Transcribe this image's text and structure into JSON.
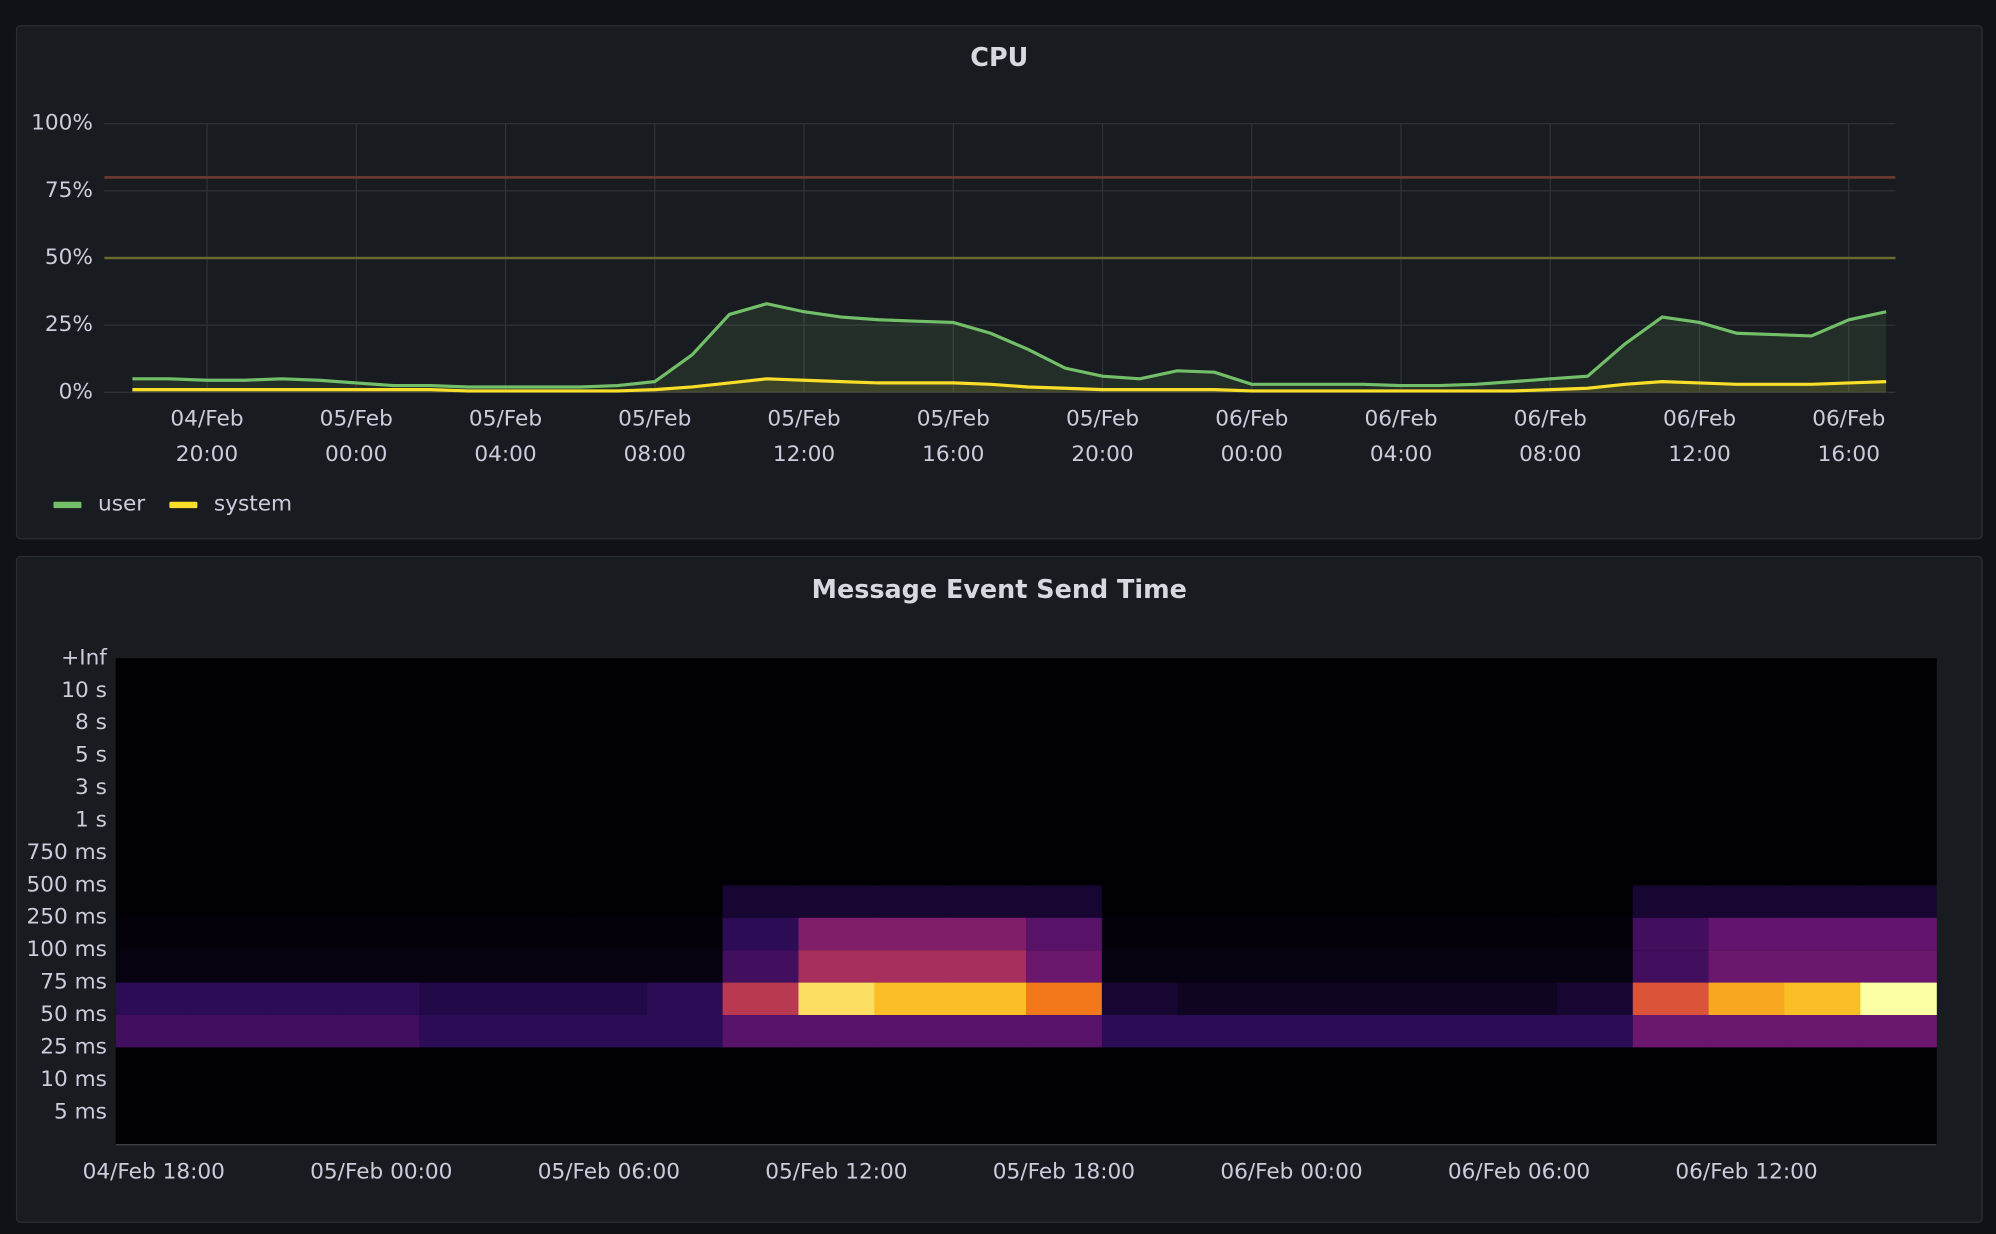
{
  "chart_data": [
    {
      "type": "line",
      "title": "CPU",
      "x": [
        "04/Feb 18:00",
        "04/Feb 19:00",
        "04/Feb 20:00",
        "04/Feb 21:00",
        "04/Feb 22:00",
        "04/Feb 23:00",
        "05/Feb 00:00",
        "05/Feb 01:00",
        "05/Feb 02:00",
        "05/Feb 03:00",
        "05/Feb 04:00",
        "05/Feb 05:00",
        "05/Feb 06:00",
        "05/Feb 07:00",
        "05/Feb 08:00",
        "05/Feb 09:00",
        "05/Feb 10:00",
        "05/Feb 11:00",
        "05/Feb 12:00",
        "05/Feb 13:00",
        "05/Feb 14:00",
        "05/Feb 15:00",
        "05/Feb 16:00",
        "05/Feb 17:00",
        "05/Feb 18:00",
        "05/Feb 19:00",
        "05/Feb 20:00",
        "05/Feb 21:00",
        "05/Feb 22:00",
        "05/Feb 23:00",
        "06/Feb 00:00",
        "06/Feb 01:00",
        "06/Feb 02:00",
        "06/Feb 03:00",
        "06/Feb 04:00",
        "06/Feb 05:00",
        "06/Feb 06:00",
        "06/Feb 07:00",
        "06/Feb 08:00",
        "06/Feb 09:00",
        "06/Feb 10:00",
        "06/Feb 11:00",
        "06/Feb 12:00",
        "06/Feb 13:00",
        "06/Feb 14:00",
        "06/Feb 15:00",
        "06/Feb 16:00",
        "06/Feb 17:00"
      ],
      "series": [
        {
          "name": "user",
          "color": "#73bf69",
          "values": [
            5,
            5,
            4.5,
            4.5,
            5,
            4.5,
            3.5,
            2.5,
            2.5,
            2,
            2,
            2,
            2,
            2.5,
            4,
            14,
            29,
            33,
            30,
            28,
            27,
            26.5,
            26,
            22,
            16,
            9,
            6,
            5,
            8,
            7.5,
            3,
            3,
            3,
            3,
            2.5,
            2.5,
            3,
            4,
            5,
            6,
            18,
            28,
            26,
            22,
            21.5,
            21,
            27,
            30
          ]
        },
        {
          "name": "system",
          "color": "#fade2a",
          "values": [
            1,
            1,
            1,
            1,
            1,
            1,
            1,
            1,
            1,
            0.5,
            0.5,
            0.5,
            0.5,
            0.5,
            1,
            2,
            3.5,
            5,
            4.5,
            4,
            3.5,
            3.5,
            3.5,
            3,
            2,
            1.5,
            1,
            1,
            1,
            1,
            0.5,
            0.5,
            0.5,
            0.5,
            0.5,
            0.5,
            0.5,
            0.5,
            1,
            1.5,
            3,
            4,
            3.5,
            3,
            3,
            3,
            3.5,
            4
          ]
        }
      ],
      "xlim": [
        "04/Feb 17:15",
        "06/Feb 17:15"
      ],
      "xticks": [
        "04/Feb 20:00",
        "05/Feb 00:00",
        "05/Feb 04:00",
        "05/Feb 08:00",
        "05/Feb 12:00",
        "05/Feb 16:00",
        "05/Feb 20:00",
        "06/Feb 00:00",
        "06/Feb 04:00",
        "06/Feb 08:00",
        "06/Feb 12:00",
        "06/Feb 16:00"
      ],
      "ylim": [
        0,
        100
      ],
      "yticks": [
        {
          "value": 0,
          "label": "0%"
        },
        {
          "value": 25,
          "label": "25%"
        },
        {
          "value": 50,
          "label": "50%"
        },
        {
          "value": 75,
          "label": "75%"
        },
        {
          "value": 100,
          "label": "100%"
        }
      ],
      "thresholds": [
        {
          "value": 80,
          "color": "#6b3a32"
        },
        {
          "value": 50,
          "color": "#6b6a2e"
        }
      ],
      "grid": true,
      "legend": "bottom-left"
    },
    {
      "type": "heatmap",
      "title": "Message Event Send Time",
      "color_scheme": "inferno",
      "x": [
        "04/Feb 17:00",
        "04/Feb 19:00",
        "04/Feb 21:00",
        "04/Feb 23:00",
        "05/Feb 01:00",
        "05/Feb 03:00",
        "05/Feb 05:00",
        "05/Feb 07:00",
        "05/Feb 09:00",
        "05/Feb 11:00",
        "05/Feb 13:00",
        "05/Feb 15:00",
        "05/Feb 17:00",
        "05/Feb 19:00",
        "05/Feb 21:00",
        "05/Feb 23:00",
        "06/Feb 01:00",
        "06/Feb 03:00",
        "06/Feb 05:00",
        "06/Feb 07:00",
        "06/Feb 09:00",
        "06/Feb 11:00",
        "06/Feb 13:00",
        "06/Feb 15:00"
      ],
      "xlim": [
        "04/Feb 17:00",
        "06/Feb 17:00"
      ],
      "xticks": [
        "04/Feb 18:00",
        "05/Feb 00:00",
        "05/Feb 06:00",
        "05/Feb 12:00",
        "05/Feb 18:00",
        "06/Feb 00:00",
        "06/Feb 06:00",
        "06/Feb 12:00"
      ],
      "y_categories": [
        "+Inf",
        "10 s",
        "8 s",
        "5 s",
        "3 s",
        "1 s",
        "750 ms",
        "500 ms",
        "250 ms",
        "100 ms",
        "75 ms",
        "50 ms",
        "25 ms",
        "10 ms",
        "5 ms"
      ],
      "values": [
        [
          0,
          0,
          0,
          0,
          0,
          0,
          0,
          0,
          0,
          0,
          0,
          0,
          0,
          0,
          0,
          0,
          0,
          0,
          0,
          0,
          0,
          0,
          0,
          0
        ],
        [
          0,
          0,
          0,
          0,
          0,
          0,
          0,
          0,
          0,
          0,
          0,
          0,
          0,
          0,
          0,
          0,
          0,
          0,
          0,
          0,
          0,
          0,
          0,
          0
        ],
        [
          0,
          0,
          0,
          0,
          0,
          0,
          0,
          0,
          0,
          0,
          0,
          0,
          0,
          0,
          0,
          0,
          0,
          0,
          0,
          0,
          0,
          0,
          0,
          0
        ],
        [
          0,
          0,
          0,
          0,
          0,
          0,
          0,
          0,
          0,
          0,
          0,
          0,
          0,
          0,
          0,
          0,
          0,
          0,
          0,
          0,
          0,
          0,
          0,
          0
        ],
        [
          0,
          0,
          0,
          0,
          0,
          0,
          0,
          0,
          0,
          0,
          0,
          0,
          0,
          0,
          0,
          0,
          0,
          0,
          0,
          0,
          0,
          0,
          0,
          0
        ],
        [
          0,
          0,
          0,
          0,
          0,
          0,
          0,
          0,
          0,
          0,
          0,
          0,
          0,
          0,
          0,
          0,
          0,
          0,
          0,
          0,
          0,
          0,
          0,
          0
        ],
        [
          0,
          0,
          0,
          0,
          0,
          0,
          0,
          0,
          0,
          0,
          0,
          0,
          0,
          0,
          0,
          0,
          0,
          0,
          0,
          0,
          0,
          0,
          0,
          0
        ],
        [
          0,
          0,
          0,
          0,
          0,
          0,
          0,
          0,
          8,
          8,
          8,
          8,
          8,
          0,
          0,
          0,
          0,
          0,
          0,
          0,
          8,
          8,
          8,
          8
        ],
        [
          1,
          1,
          1,
          1,
          1,
          1,
          1,
          1,
          15,
          35,
          35,
          35,
          25,
          1,
          1,
          1,
          1,
          1,
          1,
          1,
          20,
          28,
          28,
          28
        ],
        [
          2,
          2,
          2,
          2,
          2,
          2,
          2,
          2,
          20,
          45,
          45,
          45,
          30,
          2,
          2,
          2,
          2,
          2,
          2,
          2,
          20,
          30,
          30,
          30
        ],
        [
          15,
          15,
          15,
          15,
          12,
          12,
          12,
          15,
          50,
          90,
          85,
          85,
          70,
          8,
          5,
          5,
          5,
          5,
          5,
          8,
          60,
          80,
          85,
          95
        ],
        [
          20,
          20,
          20,
          20,
          15,
          15,
          15,
          15,
          25,
          25,
          25,
          25,
          25,
          15,
          15,
          15,
          15,
          15,
          15,
          15,
          30,
          30,
          30,
          30
        ],
        [
          0,
          0,
          0,
          0,
          0,
          0,
          0,
          0,
          0,
          0,
          0,
          0,
          0,
          0,
          0,
          0,
          0,
          0,
          0,
          0,
          0,
          0,
          0,
          0
        ],
        [
          0,
          0,
          0,
          0,
          0,
          0,
          0,
          0,
          0,
          0,
          0,
          0,
          0,
          0,
          0,
          0,
          0,
          0,
          0,
          0,
          0,
          0,
          0,
          0
        ],
        [
          0,
          0,
          0,
          0,
          0,
          0,
          0,
          0,
          0,
          0,
          0,
          0,
          0,
          0,
          0,
          0,
          0,
          0,
          0,
          0,
          0,
          0,
          0,
          0
        ]
      ]
    }
  ]
}
